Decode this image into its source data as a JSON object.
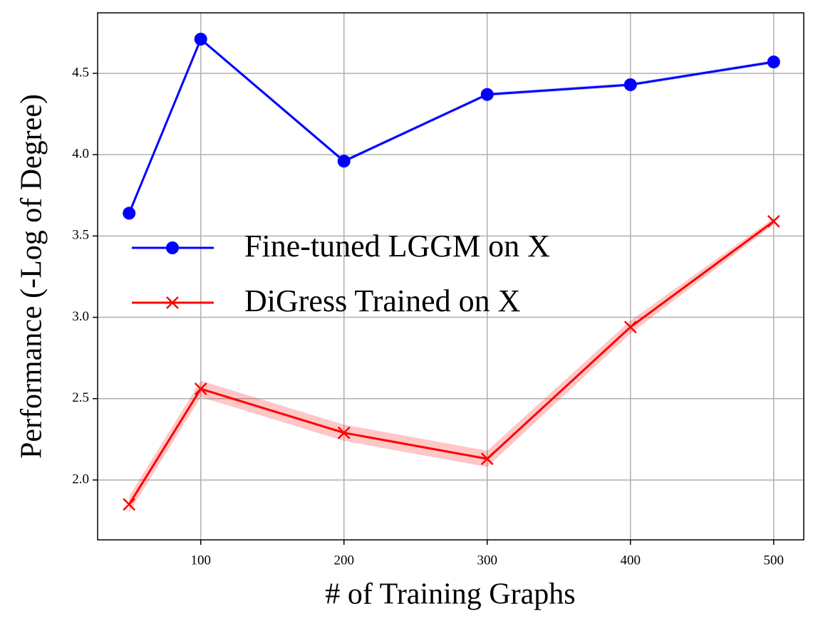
{
  "chart_data": {
    "type": "line",
    "xlabel": "# of Training Graphs",
    "ylabel": "Performance (-Log of Degree)",
    "x": [
      50,
      100,
      200,
      300,
      400,
      500
    ],
    "series": [
      {
        "name": "Fine-tuned LGGM on X",
        "color": "#0000ff",
        "marker": "o",
        "values": [
          3.64,
          4.71,
          3.96,
          4.37,
          4.43,
          4.57
        ],
        "errors": [
          0.01,
          0.01,
          0.01,
          0.01,
          0.01,
          0.01
        ]
      },
      {
        "name": "DiGress Trained on X",
        "color": "#ff0000",
        "marker": "x",
        "values": [
          1.85,
          2.56,
          2.29,
          2.13,
          2.94,
          3.59
        ],
        "errors": [
          0.05,
          0.05,
          0.05,
          0.05,
          0.04,
          0.02
        ]
      }
    ],
    "xlim": [
      28,
      521
    ],
    "ylim": [
      1.632,
      4.872
    ],
    "xticks": [
      100,
      200,
      300,
      400,
      500
    ],
    "yticks": [
      {
        "value": 2,
        "label": "2.0"
      },
      2.5,
      {
        "value": 3,
        "label": "3.0"
      },
      3.5,
      {
        "value": 4,
        "label": "4.0"
      },
      4.5
    ],
    "grid": true,
    "legend": "center left"
  }
}
